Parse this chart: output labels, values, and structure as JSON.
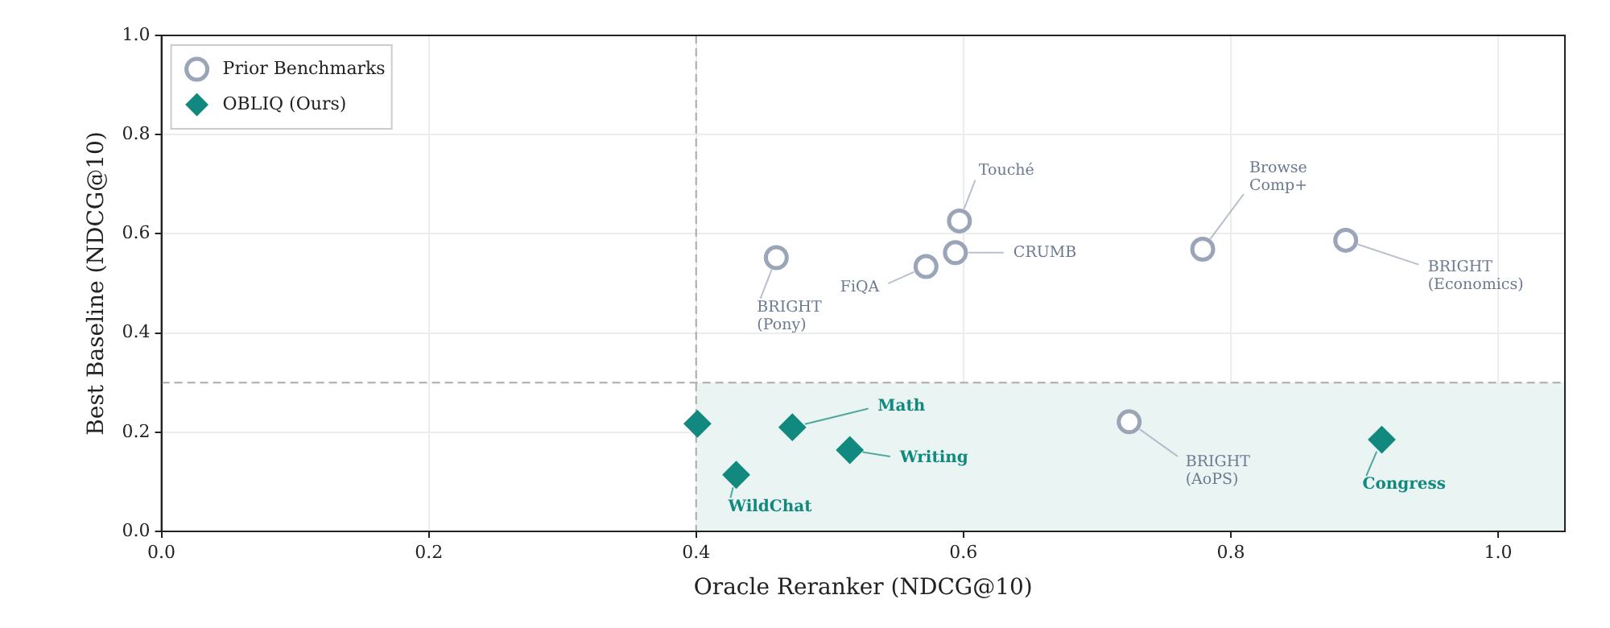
{
  "chart_data": {
    "type": "scatter",
    "xlabel": "Oracle Reranker (NDCG@10)",
    "ylabel": "Best Baseline (NDCG@10)",
    "xlim": [
      0,
      1.05
    ],
    "ylim": [
      0,
      1
    ],
    "xticks": [
      {
        "value": 0,
        "label": "0.0"
      },
      {
        "value": 0.2,
        "label": "0.2"
      },
      {
        "value": 0.4,
        "label": "0.4"
      },
      {
        "value": 0.6,
        "label": "0.6"
      },
      {
        "value": 0.8,
        "label": "0.8"
      },
      {
        "value": 1,
        "label": "1.0"
      }
    ],
    "yticks": [
      {
        "value": 0,
        "label": "0.0"
      },
      {
        "value": 0.2,
        "label": "0.2"
      },
      {
        "value": 0.4,
        "label": "0.4"
      },
      {
        "value": 0.6,
        "label": "0.6"
      },
      {
        "value": 0.8,
        "label": "0.8"
      },
      {
        "value": 1,
        "label": "1.0"
      }
    ],
    "grid": true,
    "legend": "top left",
    "ref_lines": [
      {
        "axis": "x",
        "value": 0.4,
        "color": "#aaaaaa",
        "line_style": "dashed"
      },
      {
        "axis": "y",
        "value": 0.3,
        "color": "#aaaaaa",
        "line_style": "dashed"
      }
    ],
    "bands": [
      {
        "axis": "y",
        "from": 0,
        "to": 0.3,
        "color": "#eaf5f3"
      }
    ],
    "series": [
      {
        "name": "Prior Benchmarks",
        "marker": "circle",
        "color": "#9aa5b8",
        "x": [
          0.46,
          0.572,
          0.594,
          0.597,
          0.779,
          0.886,
          0.724
        ],
        "values": [
          0.552,
          0.534,
          0.562,
          0.626,
          0.569,
          0.587,
          0.221
        ],
        "value_labels": [
          "BRIGHT (Pony)",
          "FiQA",
          "CRUMB",
          "Touché",
          "Browse Comp+",
          "BRIGHT (Economics)",
          "BRIGHT (AoPS)"
        ]
      },
      {
        "name": "OBLIQ (Ours)",
        "marker": "diamond",
        "color": "#12897e",
        "x": [
          0.472,
          0.401,
          0.515,
          0.43,
          0.913
        ],
        "values": [
          0.21,
          0.217,
          0.164,
          0.114,
          0.185
        ],
        "value_labels": [
          "Math",
          null,
          "Writing",
          "WildChat",
          "Congress"
        ]
      }
    ]
  }
}
